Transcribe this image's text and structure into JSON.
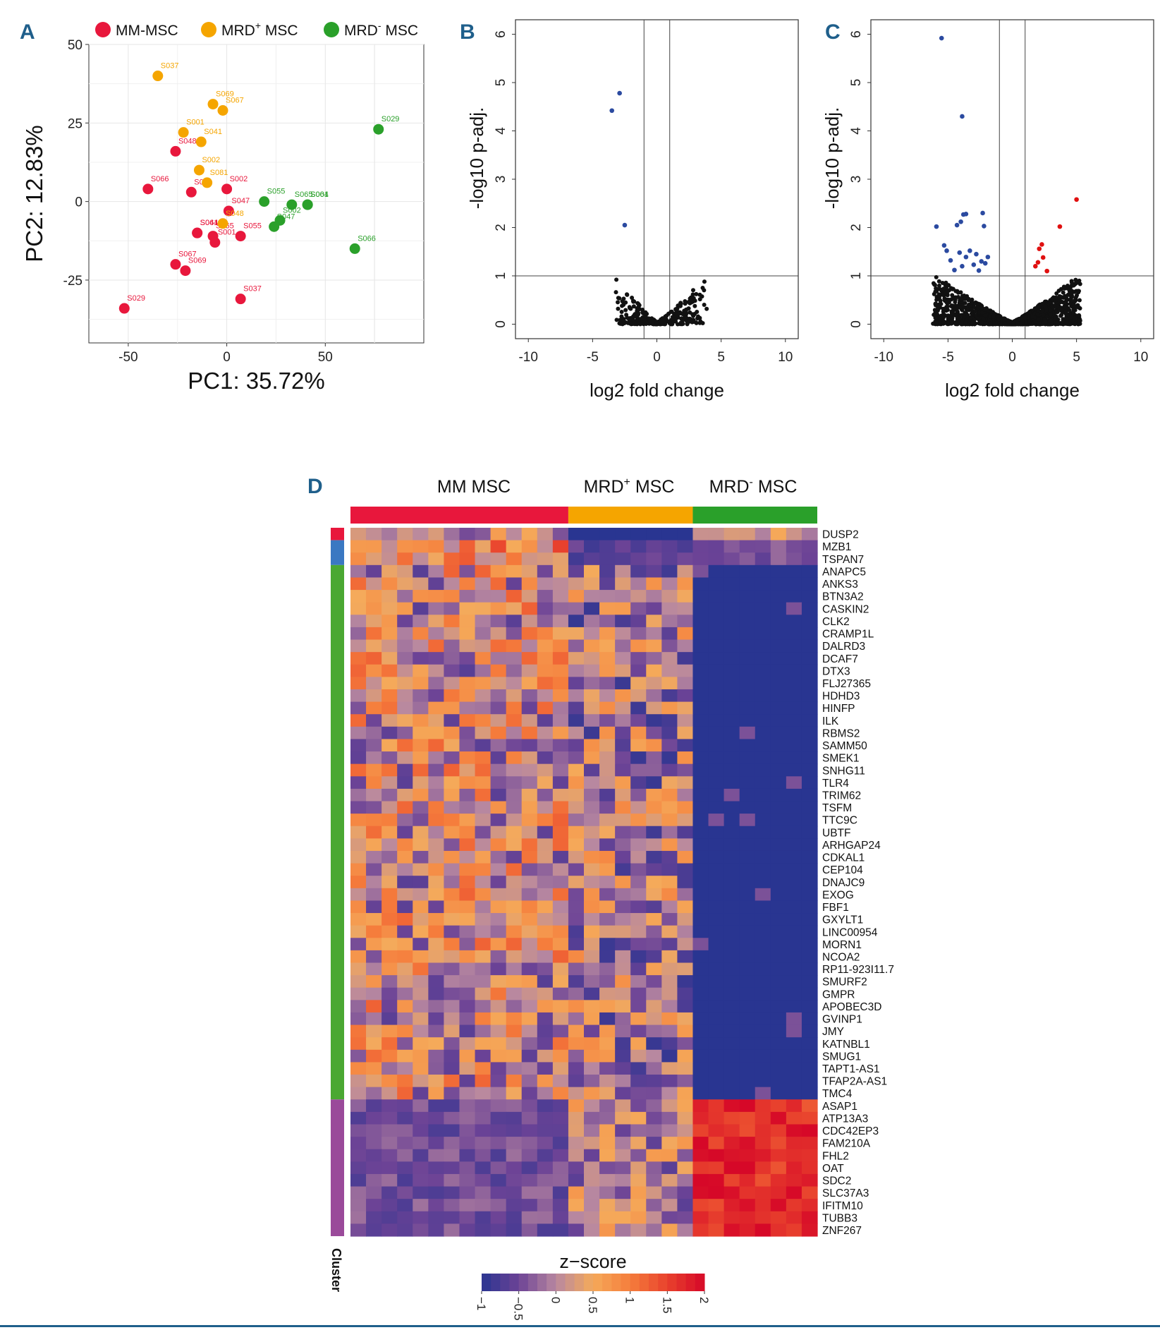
{
  "colors": {
    "mm": "#e8173c",
    "mrd_pos": "#f5a500",
    "mrd_neg": "#2aa02a",
    "volcano_neutral": "#111111",
    "volcano_down": "#2b4aa0",
    "volcano_up": "#e01010",
    "accent": "#1f5f8b"
  },
  "panels": {
    "A": "A",
    "B": "B",
    "C": "C",
    "D": "D"
  },
  "chart_data": [
    {
      "id": "pca",
      "type": "scatter",
      "title": "",
      "xlabel": "PC1: 35.72%",
      "ylabel": "PC2: 12.83%",
      "xlim": [
        -70,
        100
      ],
      "ylim": [
        -45,
        50
      ],
      "xticks": [
        -50,
        0,
        50
      ],
      "yticks": [
        -25,
        0,
        25,
        50
      ],
      "legend": [
        {
          "key": "mm",
          "label": "MM-MSC",
          "sup": ""
        },
        {
          "key": "mrd_pos",
          "label": "MRD",
          "sup": "+",
          "suffix": " MSC"
        },
        {
          "key": "mrd_neg",
          "label": "MRD",
          "sup": "-",
          "suffix": " MSC"
        }
      ],
      "series": [
        {
          "name": "MM-MSC",
          "key": "mm",
          "points": [
            {
              "label": "S048",
              "x": -26,
              "y": 16
            },
            {
              "label": "S066",
              "x": -40,
              "y": 4
            },
            {
              "label": "S081",
              "x": -18,
              "y": 3
            },
            {
              "label": "S002",
              "x": 0,
              "y": 4
            },
            {
              "label": "S047",
              "x": 1,
              "y": -3
            },
            {
              "label": "S064",
              "x": -15,
              "y": -10
            },
            {
              "label": "S041",
              "x": -15,
              "y": -10
            },
            {
              "label": "S065",
              "x": -7,
              "y": -11
            },
            {
              "label": "S055",
              "x": 7,
              "y": -11
            },
            {
              "label": "S001",
              "x": -6,
              "y": -13
            },
            {
              "label": "S067",
              "x": -26,
              "y": -20
            },
            {
              "label": "S069",
              "x": -21,
              "y": -22
            },
            {
              "label": "S037",
              "x": 7,
              "y": -31
            },
            {
              "label": "S029",
              "x": -52,
              "y": -34
            }
          ]
        },
        {
          "name": "MRD+ MSC",
          "key": "mrd_pos",
          "points": [
            {
              "label": "S037",
              "x": -35,
              "y": 40
            },
            {
              "label": "S069",
              "x": -7,
              "y": 31
            },
            {
              "label": "S067",
              "x": -2,
              "y": 29
            },
            {
              "label": "S001",
              "x": -22,
              "y": 22
            },
            {
              "label": "S041",
              "x": -13,
              "y": 19
            },
            {
              "label": "S002",
              "x": -14,
              "y": 10
            },
            {
              "label": "S081",
              "x": -10,
              "y": 6
            },
            {
              "label": "S048",
              "x": -2,
              "y": -7
            }
          ]
        },
        {
          "name": "MRD- MSC",
          "key": "mrd_neg",
          "points": [
            {
              "label": "S029",
              "x": 77,
              "y": 23
            },
            {
              "label": "S055",
              "x": 19,
              "y": 0
            },
            {
              "label": "S065",
              "x": 33,
              "y": -1
            },
            {
              "label": "S001",
              "x": 41,
              "y": -1
            },
            {
              "label": "S064",
              "x": 41,
              "y": -1
            },
            {
              "label": "S002",
              "x": 27,
              "y": -6
            },
            {
              "label": "S047",
              "x": 24,
              "y": -8
            },
            {
              "label": "S066",
              "x": 65,
              "y": -15
            }
          ]
        }
      ]
    },
    {
      "id": "volcano_b",
      "type": "scatter",
      "xlabel": "log2 fold change",
      "ylabel": "-log10 p-adj.",
      "xlim": [
        -11,
        11
      ],
      "ylim": [
        -0.3,
        6.3
      ],
      "xticks": [
        -10,
        -5,
        0,
        5,
        10
      ],
      "yticks": [
        0,
        1,
        2,
        3,
        4,
        5,
        6
      ],
      "vlines": [
        -1,
        1
      ],
      "hline": 1,
      "highlight": {
        "down": [
          [
            -2.9,
            4.78
          ],
          [
            -3.5,
            4.42
          ],
          [
            -2.5,
            2.05
          ]
        ],
        "up": []
      },
      "cloud": {
        "xmin": -3.2,
        "xmax": 3.9,
        "ymax": 0.95,
        "count": 320
      }
    },
    {
      "id": "volcano_c",
      "type": "scatter",
      "xlabel": "log2 fold change",
      "ylabel": "-log10 p-adj.",
      "xlim": [
        -11,
        11
      ],
      "ylim": [
        -0.3,
        6.3
      ],
      "xticks": [
        -10,
        -5,
        0,
        5,
        10
      ],
      "yticks": [
        0,
        1,
        2,
        3,
        4,
        5,
        6
      ],
      "vlines": [
        -1,
        1
      ],
      "hline": 1,
      "highlight": {
        "down": [
          [
            -5.5,
            5.92
          ],
          [
            -3.9,
            4.3
          ],
          [
            -5.9,
            2.02
          ],
          [
            -4.3,
            2.05
          ],
          [
            -3.8,
            2.27
          ],
          [
            -3.6,
            2.28
          ],
          [
            -2.3,
            2.3
          ],
          [
            -2.2,
            2.03
          ],
          [
            -4.0,
            2.12
          ],
          [
            -5.1,
            1.52
          ],
          [
            -4.8,
            1.32
          ],
          [
            -4.1,
            1.48
          ],
          [
            -3.6,
            1.39
          ],
          [
            -3.3,
            1.52
          ],
          [
            -2.8,
            1.45
          ],
          [
            -2.4,
            1.3
          ],
          [
            -2.1,
            1.26
          ],
          [
            -3.0,
            1.23
          ],
          [
            -3.9,
            1.2
          ],
          [
            -1.9,
            1.39
          ],
          [
            -4.5,
            1.12
          ],
          [
            -5.3,
            1.63
          ],
          [
            -2.6,
            1.11
          ]
        ],
        "up": [
          [
            5.0,
            2.58
          ],
          [
            3.7,
            2.02
          ],
          [
            2.1,
            1.56
          ],
          [
            2.3,
            1.65
          ],
          [
            2.0,
            1.28
          ],
          [
            2.4,
            1.38
          ],
          [
            1.8,
            1.2
          ],
          [
            2.7,
            1.1
          ]
        ]
      },
      "cloud": {
        "xmin": -6.2,
        "xmax": 5.3,
        "ymax": 1.0,
        "count": 1500
      }
    },
    {
      "id": "heatmap",
      "type": "heatmap",
      "groups": [
        {
          "key": "mm",
          "label": "MM MSC",
          "sup": "",
          "count": 14
        },
        {
          "key": "mrd_pos",
          "label": "MRD",
          "sup": "+",
          "suffix": " MSC",
          "count": 8
        },
        {
          "key": "mrd_neg",
          "label": "MRD",
          "sup": "-",
          "suffix": " MSC",
          "count": 8
        }
      ],
      "genes": [
        "DUSP2",
        "MZB1",
        "TSPAN7",
        "ANAPC5",
        "ANKS3",
        "BTN3A2",
        "CASKIN2",
        "CLK2",
        "CRAMP1L",
        "DALRD3",
        "DCAF7",
        "DTX3",
        "FLJ27365",
        "HDHD3",
        "HINFP",
        "ILK",
        "RBMS2",
        "SAMM50",
        "SMEK1",
        "SNHG11",
        "TLR4",
        "TRIM62",
        "TSFM",
        "TTC9C",
        "UBTF",
        "ARHGAP24",
        "CDKAL1",
        "CEP104",
        "DNAJC9",
        "EXOG",
        "FBF1",
        "GXYLT1",
        "LINC00954",
        "MORN1",
        "NCOA2",
        "RP11-923I11.7",
        "SMURF2",
        "GMPR",
        "APOBEC3D",
        "GVINP1",
        "JMY",
        "KATNBL1",
        "SMUG1",
        "TAPT1-AS1",
        "TFAP2A-AS1",
        "TMC4",
        "ASAP1",
        "ATP13A3",
        "CDC42EP3",
        "FAM210A",
        "FHL2",
        "OAT",
        "SDC2",
        "SLC37A3",
        "IFITM10",
        "TUBB3",
        "ZNF267"
      ],
      "clusters": [
        {
          "color": "#e8173c",
          "rows": 1
        },
        {
          "color": "#3a78c2",
          "rows": 2
        },
        {
          "color": "#4aa832",
          "rows": 43
        },
        {
          "color": "#9a4a9a",
          "rows": 11
        }
      ],
      "cluster_label": "Cluster",
      "colorbar": {
        "title": "z−score",
        "min": -1,
        "max": 2,
        "ticks": [
          "−1",
          "−0.5",
          "0",
          "0.5",
          "1",
          "1.5",
          "2"
        ]
      }
    }
  ]
}
